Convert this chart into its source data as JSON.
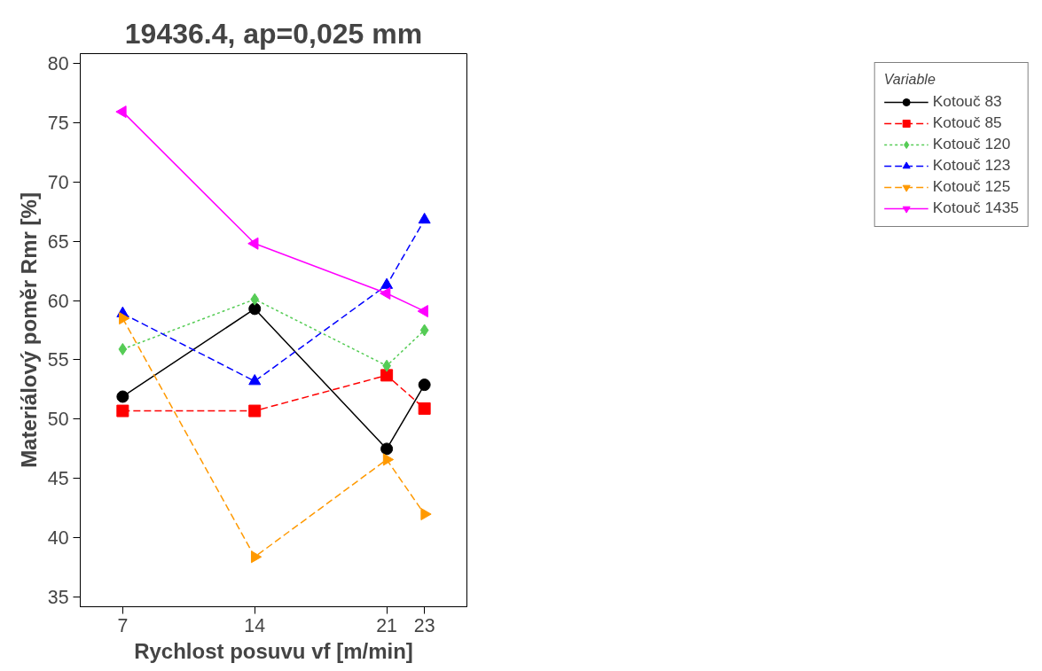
{
  "chart_data": {
    "type": "line",
    "title": "19436.4, ap=0,025 mm",
    "xlabel": "Rychlost posuvu vf [m/min]",
    "ylabel": "Materiálový poměr Rmr [%]",
    "legend_title": "Variable",
    "legend": "right",
    "grid": false,
    "x": [
      7,
      14,
      21,
      23
    ],
    "xlim": [
      4.75,
      25.25
    ],
    "xticks": [
      7,
      14,
      21,
      23
    ],
    "ylim": [
      34.2,
      80.8
    ],
    "yticks": [
      35,
      40,
      45,
      50,
      55,
      60,
      65,
      70,
      75,
      80
    ],
    "series": [
      {
        "name": "Kotouč 83",
        "color": "#000000",
        "marker": "circle",
        "line_style": "solid",
        "values": [
          51.9,
          59.3,
          47.5,
          52.9
        ]
      },
      {
        "name": "Kotouč 85",
        "color": "#ff0000",
        "marker": "square",
        "line_style": "dashed",
        "values": [
          50.7,
          50.7,
          53.7,
          50.9
        ]
      },
      {
        "name": "Kotouč 120",
        "color": "#55cc55",
        "marker": "diamond",
        "line_style": "dotted",
        "values": [
          55.9,
          60.1,
          54.5,
          57.5
        ]
      },
      {
        "name": "Kotouč 123",
        "color": "#0000ff",
        "marker": "triangle",
        "line_style": "dashed",
        "values": [
          58.9,
          53.2,
          61.3,
          66.8
        ]
      },
      {
        "name": "Kotouč 125",
        "color": "#ff9900",
        "marker": "triangle_right",
        "line_style": "dashed",
        "values": [
          58.5,
          38.4,
          46.6,
          42.0
        ]
      },
      {
        "name": "Kotouč 1435",
        "color": "#ff00ff",
        "marker": "triangle_left",
        "line_style": "solid",
        "values": [
          75.9,
          64.8,
          60.6,
          59.1
        ]
      }
    ]
  }
}
